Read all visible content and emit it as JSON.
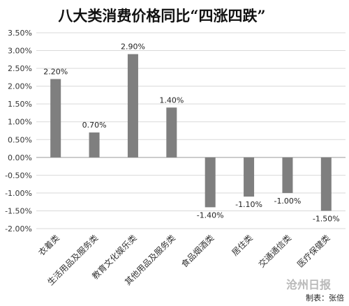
{
  "chart_data": {
    "type": "bar",
    "title": "八大类消费价格同比“四涨四跌”",
    "categories": [
      "衣着类",
      "生活用品及服务类",
      "教育文化娱乐类",
      "其他用品及服务类",
      "食品烟酒类",
      "居住类",
      "交通通信类",
      "医疗保健类"
    ],
    "values": [
      2.2,
      0.7,
      2.9,
      1.4,
      -1.4,
      -1.1,
      -1.0,
      -1.5
    ],
    "data_labels": [
      "2.20%",
      "0.70%",
      "2.90%",
      "1.40%",
      "-1.40%",
      "-1.10%",
      "-1.00%",
      "-1.50%"
    ],
    "yticks": [
      3.5,
      3.0,
      2.5,
      2.0,
      1.5,
      1.0,
      0.5,
      0.0,
      -0.5,
      -1.0,
      -1.5,
      -2.0
    ],
    "ytick_labels": [
      "3.50%",
      "3.00%",
      "2.50%",
      "2.00%",
      "1.50%",
      "1.00%",
      "0.50%",
      "0.00%",
      "-0.50%",
      "-1.00%",
      "-1.50%",
      "-2.00%"
    ],
    "ylim": [
      -2.0,
      3.5
    ],
    "xlabel": "",
    "ylabel": "",
    "grid": true,
    "bar_color": "#7f7f7f"
  },
  "watermark": "沧州日报",
  "credit": "制表：张倍"
}
